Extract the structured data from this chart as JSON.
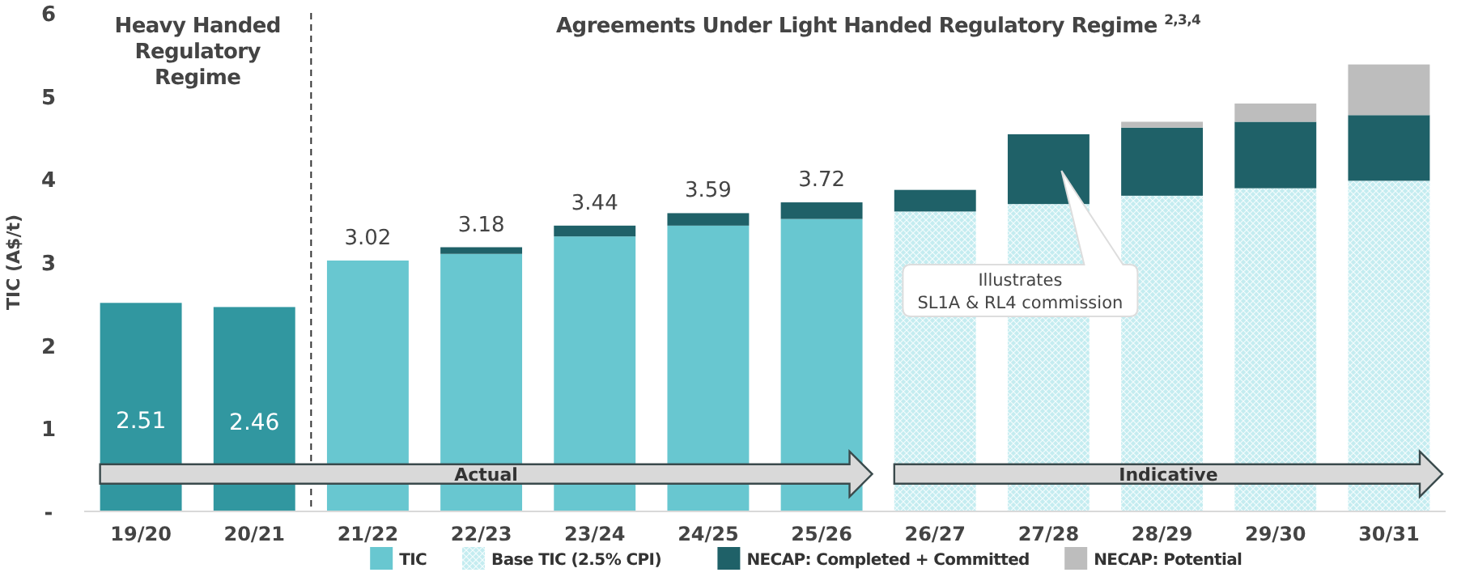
{
  "chart_data": {
    "type": "bar",
    "stacked": true,
    "ylabel": "TIC (A$/t)",
    "categories": [
      "19/20",
      "20/21",
      "21/22",
      "22/23",
      "23/24",
      "24/25",
      "25/26",
      "26/27",
      "27/28",
      "28/29",
      "29/30",
      "30/31"
    ],
    "series": [
      {
        "name": "TIC",
        "color": "#68c7d0",
        "colors": [
          "#3197a0",
          "#3197a0",
          "#68c7d0",
          "#68c7d0",
          "#68c7d0",
          "#68c7d0",
          "#68c7d0",
          null,
          null,
          null,
          null,
          null
        ],
        "values": [
          2.51,
          2.46,
          3.02,
          3.1,
          3.31,
          3.44,
          3.52,
          null,
          null,
          null,
          null,
          null
        ],
        "value_labels": [
          "2.51",
          "2.46",
          null,
          null,
          null,
          null,
          null,
          null,
          null,
          null,
          null,
          null
        ]
      },
      {
        "name": "Base TIC (2.5% CPI)",
        "color": "#c4ecf0",
        "values": [
          null,
          null,
          null,
          null,
          null,
          null,
          null,
          3.61,
          3.7,
          3.8,
          3.89,
          3.98
        ]
      },
      {
        "name": "NECAP: Completed + Committed",
        "color": "#1f6168",
        "values": [
          null,
          null,
          null,
          0.08,
          0.13,
          0.15,
          0.2,
          0.26,
          0.84,
          0.82,
          0.8,
          0.79
        ]
      },
      {
        "name": "NECAP: Potential",
        "color": "#bdbdbd",
        "values": [
          null,
          null,
          null,
          null,
          null,
          null,
          null,
          null,
          null,
          0.07,
          0.22,
          0.61
        ]
      }
    ],
    "totals": [
      null,
      null,
      "3.02",
      "3.18",
      "3.44",
      "3.59",
      "3.72",
      null,
      null,
      null,
      null,
      null
    ],
    "ylim": [
      0,
      6
    ],
    "yticks": [
      {
        "value": 0,
        "label": "-"
      },
      1,
      2,
      3,
      4,
      5,
      6
    ],
    "grid": false,
    "legend": "bottom",
    "annotations": [
      "Heavy Handed Regulatory Regime",
      "Agreements Under Light Handed Regulatory Regime $^{2,3,4}$",
      "Actual",
      "Indicative",
      "Illustrates\nSL1A & RL4 commission"
    ]
  }
}
